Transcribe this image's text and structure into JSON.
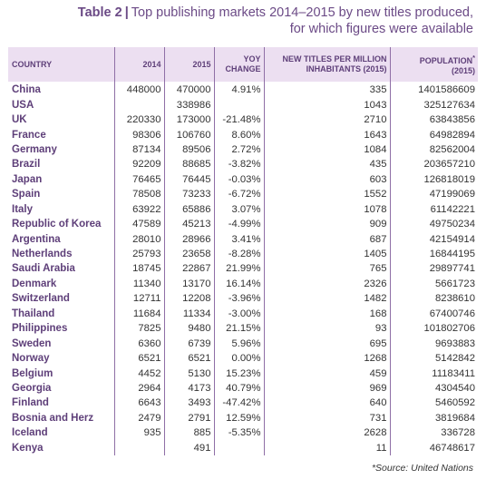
{
  "title": {
    "number": "Table 2",
    "separator": "|",
    "line1": "Top publishing markets 2014–2015 by new titles produced,",
    "line2": "for which figures were available"
  },
  "headers": [
    "COUNTRY",
    "2014",
    "2015",
    "YOY",
    "CHANGE",
    "NEW TITLES PER MILLION",
    "INHABITANTS (2015)",
    "POPULATION",
    "*",
    "(2015)"
  ],
  "rows": [
    [
      "China",
      "448000",
      "470000",
      "4.91%",
      "335",
      "1401586609"
    ],
    [
      "USA",
      "",
      "338986",
      "",
      "1043",
      "325127634"
    ],
    [
      "UK",
      "220330",
      "173000",
      "-21.48%",
      "2710",
      "63843856"
    ],
    [
      "France",
      "98306",
      "106760",
      "8.60%",
      "1643",
      "64982894"
    ],
    [
      "Germany",
      "87134",
      "89506",
      "2.72%",
      "1084",
      "82562004"
    ],
    [
      "Brazil",
      "92209",
      "88685",
      "-3.82%",
      "435",
      "203657210"
    ],
    [
      "Japan",
      "76465",
      "76445",
      "-0.03%",
      "603",
      "126818019"
    ],
    [
      "Spain",
      "78508",
      "73233",
      "-6.72%",
      "1552",
      "47199069"
    ],
    [
      "Italy",
      "63922",
      "65886",
      "3.07%",
      "1078",
      "61142221"
    ],
    [
      "Republic of Korea",
      "47589",
      "45213",
      "-4.99%",
      "909",
      "49750234"
    ],
    [
      "Argentina",
      "28010",
      "28966",
      "3.41%",
      "687",
      "42154914"
    ],
    [
      "Netherlands",
      "25793",
      "23658",
      "-8.28%",
      "1405",
      "16844195"
    ],
    [
      "Saudi Arabia",
      "18745",
      "22867",
      "21.99%",
      "765",
      "29897741"
    ],
    [
      "Denmark",
      "11340",
      "13170",
      "16.14%",
      "2326",
      "5661723"
    ],
    [
      "Switzerland",
      "12711",
      "12208",
      "-3.96%",
      "1482",
      "8238610"
    ],
    [
      "Thailand",
      "11684",
      "11334",
      "-3.00%",
      "168",
      "67400746"
    ],
    [
      "Philippines",
      "7825",
      "9480",
      "21.15%",
      "93",
      "101802706"
    ],
    [
      "Sweden",
      "6360",
      "6739",
      "5.96%",
      "695",
      "9693883"
    ],
    [
      "Norway",
      "6521",
      "6521",
      "0.00%",
      "1268",
      "5142842"
    ],
    [
      "Belgium",
      "4452",
      "5130",
      "15.23%",
      "459",
      "11183411"
    ],
    [
      "Georgia",
      "2964",
      "4173",
      "40.79%",
      "969",
      "4304540"
    ],
    [
      "Finland",
      "6643",
      "3493",
      "-47.42%",
      "640",
      "5460592"
    ],
    [
      "Bosnia and Herz",
      "2479",
      "2791",
      "12.59%",
      "731",
      "3819684"
    ],
    [
      "Iceland",
      "935",
      "885",
      "-5.35%",
      "2628",
      "336728"
    ],
    [
      "Kenya",
      "",
      "491",
      "",
      "11",
      "46748617"
    ]
  ],
  "source": "*Source: United Nations",
  "colors": {
    "accent": "#6b4a86",
    "header_bg": "#ecdff1",
    "divider": "#8f6fa6",
    "text": "#333333"
  }
}
